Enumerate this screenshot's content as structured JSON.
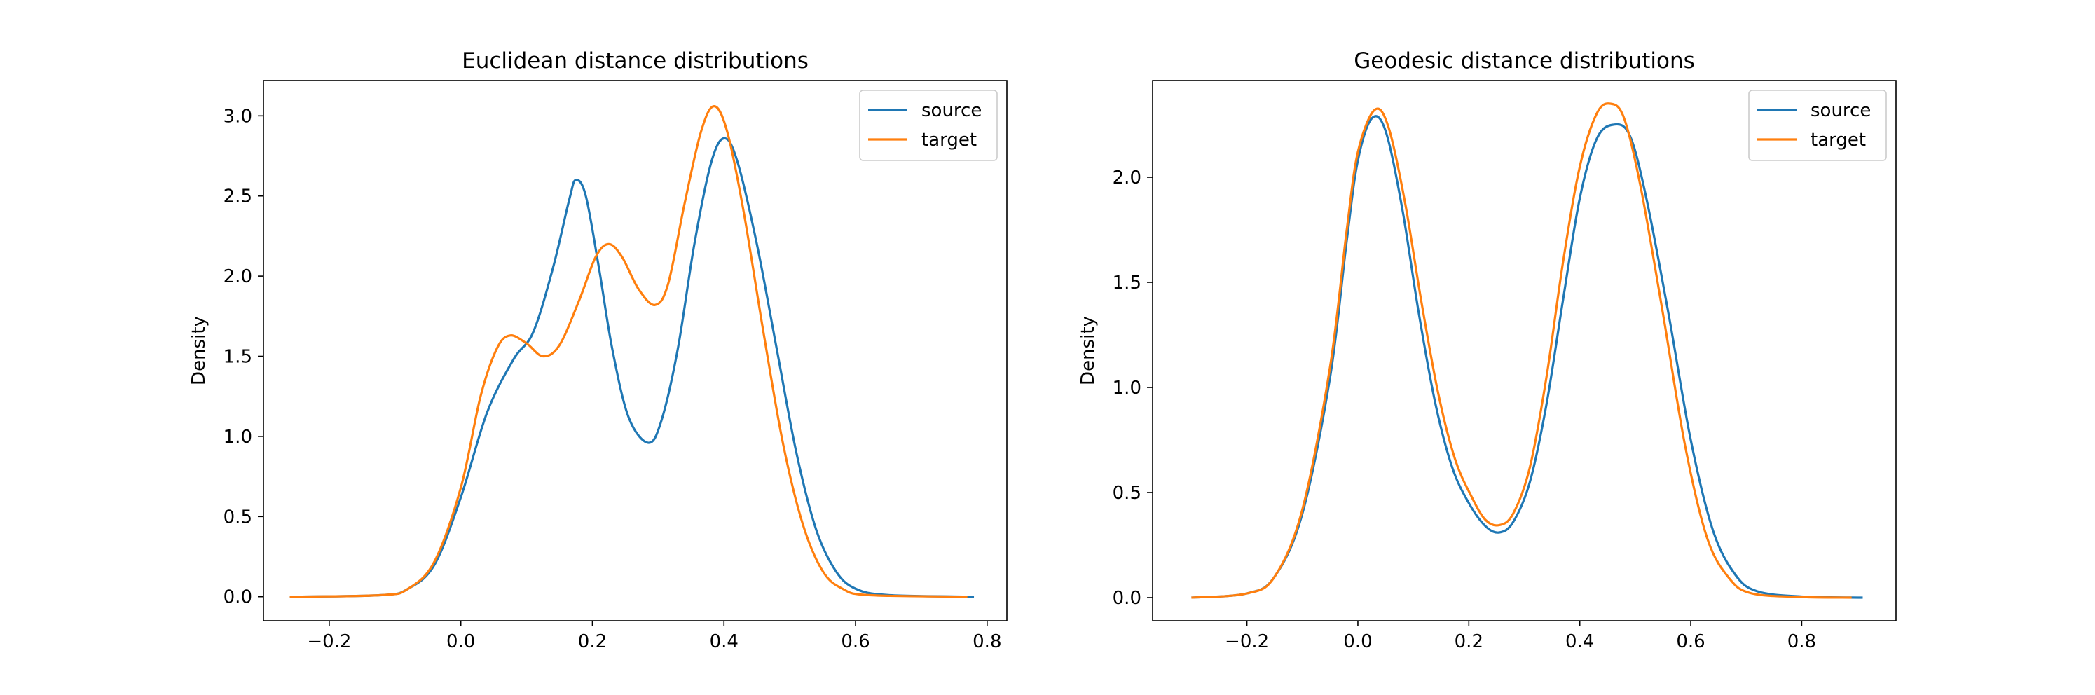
{
  "chart_data": [
    {
      "type": "line",
      "title": "Euclidean distance distributions",
      "xlabel": "",
      "ylabel": "Density",
      "xlim": [
        -0.3,
        0.83
      ],
      "ylim": [
        -0.15,
        3.22
      ],
      "x_ticks": [
        -0.2,
        0.0,
        0.2,
        0.4,
        0.6,
        0.8
      ],
      "x_tick_labels": [
        "−0.2",
        "0.0",
        "0.2",
        "0.4",
        "0.6",
        "0.8"
      ],
      "y_ticks": [
        0.0,
        0.5,
        1.0,
        1.5,
        2.0,
        2.5,
        3.0
      ],
      "y_tick_labels": [
        "0.0",
        "0.5",
        "1.0",
        "1.5",
        "2.0",
        "2.5",
        "3.0"
      ],
      "grid": false,
      "legend": "top-right",
      "series": [
        {
          "name": "source",
          "color": "#1f77b4",
          "points": [
            [
              -0.26,
              0
            ],
            [
              -0.12,
              0.01
            ],
            [
              -0.08,
              0.05
            ],
            [
              -0.04,
              0.2
            ],
            [
              0.0,
              0.62
            ],
            [
              0.04,
              1.15
            ],
            [
              0.08,
              1.48
            ],
            [
              0.11,
              1.65
            ],
            [
              0.14,
              2.05
            ],
            [
              0.165,
              2.48
            ],
            [
              0.175,
              2.6
            ],
            [
              0.19,
              2.5
            ],
            [
              0.21,
              2.05
            ],
            [
              0.23,
              1.55
            ],
            [
              0.255,
              1.12
            ],
            [
              0.285,
              0.96
            ],
            [
              0.305,
              1.1
            ],
            [
              0.33,
              1.55
            ],
            [
              0.355,
              2.2
            ],
            [
              0.38,
              2.7
            ],
            [
              0.4,
              2.86
            ],
            [
              0.42,
              2.72
            ],
            [
              0.45,
              2.2
            ],
            [
              0.48,
              1.55
            ],
            [
              0.51,
              0.9
            ],
            [
              0.54,
              0.42
            ],
            [
              0.57,
              0.16
            ],
            [
              0.6,
              0.05
            ],
            [
              0.65,
              0.01
            ],
            [
              0.78,
              0
            ]
          ]
        },
        {
          "name": "target",
          "color": "#ff7f0e",
          "points": [
            [
              -0.26,
              0
            ],
            [
              -0.12,
              0.01
            ],
            [
              -0.08,
              0.05
            ],
            [
              -0.04,
              0.22
            ],
            [
              0.0,
              0.68
            ],
            [
              0.03,
              1.25
            ],
            [
              0.055,
              1.55
            ],
            [
              0.075,
              1.63
            ],
            [
              0.1,
              1.58
            ],
            [
              0.125,
              1.5
            ],
            [
              0.15,
              1.57
            ],
            [
              0.18,
              1.85
            ],
            [
              0.205,
              2.12
            ],
            [
              0.225,
              2.2
            ],
            [
              0.245,
              2.12
            ],
            [
              0.27,
              1.92
            ],
            [
              0.295,
              1.82
            ],
            [
              0.315,
              1.95
            ],
            [
              0.34,
              2.45
            ],
            [
              0.365,
              2.9
            ],
            [
              0.385,
              3.06
            ],
            [
              0.405,
              2.9
            ],
            [
              0.43,
              2.4
            ],
            [
              0.46,
              1.65
            ],
            [
              0.49,
              0.95
            ],
            [
              0.52,
              0.45
            ],
            [
              0.55,
              0.16
            ],
            [
              0.58,
              0.05
            ],
            [
              0.62,
              0.01
            ],
            [
              0.77,
              0
            ]
          ]
        }
      ]
    },
    {
      "type": "line",
      "title": "Geodesic distance distributions",
      "xlabel": "",
      "ylabel": "Density",
      "xlim": [
        -0.37,
        0.97
      ],
      "ylim": [
        -0.11,
        2.46
      ],
      "x_ticks": [
        -0.2,
        0.0,
        0.2,
        0.4,
        0.6,
        0.8
      ],
      "x_tick_labels": [
        "−0.2",
        "0.0",
        "0.2",
        "0.4",
        "0.6",
        "0.8"
      ],
      "y_ticks": [
        0.0,
        0.5,
        1.0,
        1.5,
        2.0
      ],
      "y_tick_labels": [
        "0.0",
        "0.5",
        "1.0",
        "1.5",
        "2.0"
      ],
      "grid": false,
      "legend": "top-right",
      "series": [
        {
          "name": "source",
          "color": "#1f77b4",
          "points": [
            [
              -0.3,
              0
            ],
            [
              -0.2,
              0.02
            ],
            [
              -0.15,
              0.1
            ],
            [
              -0.1,
              0.4
            ],
            [
              -0.05,
              1.05
            ],
            [
              -0.02,
              1.7
            ],
            [
              0.0,
              2.08
            ],
            [
              0.025,
              2.28
            ],
            [
              0.05,
              2.22
            ],
            [
              0.08,
              1.85
            ],
            [
              0.11,
              1.35
            ],
            [
              0.14,
              0.92
            ],
            [
              0.17,
              0.62
            ],
            [
              0.2,
              0.45
            ],
            [
              0.23,
              0.34
            ],
            [
              0.255,
              0.31
            ],
            [
              0.28,
              0.36
            ],
            [
              0.31,
              0.55
            ],
            [
              0.34,
              0.92
            ],
            [
              0.37,
              1.42
            ],
            [
              0.4,
              1.9
            ],
            [
              0.43,
              2.18
            ],
            [
              0.46,
              2.25
            ],
            [
              0.49,
              2.2
            ],
            [
              0.52,
              1.9
            ],
            [
              0.56,
              1.35
            ],
            [
              0.6,
              0.75
            ],
            [
              0.64,
              0.32
            ],
            [
              0.68,
              0.11
            ],
            [
              0.72,
              0.03
            ],
            [
              0.8,
              0.005
            ],
            [
              0.91,
              0
            ]
          ]
        },
        {
          "name": "target",
          "color": "#ff7f0e",
          "points": [
            [
              -0.3,
              0
            ],
            [
              -0.2,
              0.02
            ],
            [
              -0.15,
              0.1
            ],
            [
              -0.1,
              0.42
            ],
            [
              -0.05,
              1.1
            ],
            [
              -0.02,
              1.75
            ],
            [
              0.0,
              2.12
            ],
            [
              0.03,
              2.32
            ],
            [
              0.055,
              2.24
            ],
            [
              0.085,
              1.88
            ],
            [
              0.115,
              1.4
            ],
            [
              0.145,
              0.97
            ],
            [
              0.175,
              0.66
            ],
            [
              0.205,
              0.48
            ],
            [
              0.23,
              0.37
            ],
            [
              0.255,
              0.345
            ],
            [
              0.28,
              0.4
            ],
            [
              0.31,
              0.62
            ],
            [
              0.34,
              1.05
            ],
            [
              0.37,
              1.6
            ],
            [
              0.4,
              2.05
            ],
            [
              0.43,
              2.3
            ],
            [
              0.455,
              2.35
            ],
            [
              0.48,
              2.28
            ],
            [
              0.51,
              1.95
            ],
            [
              0.55,
              1.35
            ],
            [
              0.59,
              0.72
            ],
            [
              0.63,
              0.28
            ],
            [
              0.67,
              0.09
            ],
            [
              0.71,
              0.02
            ],
            [
              0.8,
              0.003
            ],
            [
              0.89,
              0
            ]
          ]
        }
      ]
    }
  ]
}
